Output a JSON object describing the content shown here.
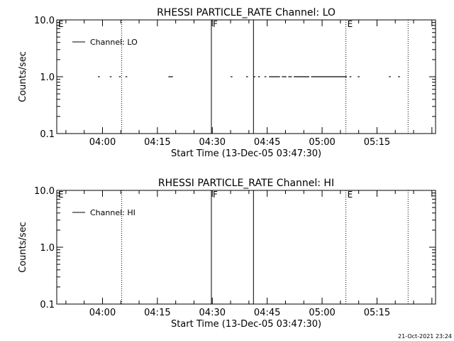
{
  "chart_data": [
    {
      "type": "scatter",
      "title": "RHESSI PARTICLE_RATE Channel: LO",
      "xlabel": "Start Time (13-Dec-05 03:47:30)",
      "ylabel": "Counts/sec",
      "y_scale": "log",
      "ylim": [
        0.1,
        10.0
      ],
      "xlim": [
        "03:47:30",
        "05:31:00"
      ],
      "x_ticks": [
        "04:00",
        "04:15",
        "04:30",
        "04:45",
        "05:00",
        "05:15"
      ],
      "y_ticks": [
        "0.1",
        "1.0",
        "10.0"
      ],
      "legend": {
        "label": "Channel: LO",
        "placement": "top-left"
      },
      "series": [
        {
          "name": "Channel: LO",
          "segments": [
            {
              "start": "03:58:45",
              "end": "03:59:15",
              "value": 1.0
            },
            {
              "start": "04:02:00",
              "end": "04:02:30",
              "value": 1.0
            },
            {
              "start": "04:04:30",
              "end": "04:05:00",
              "value": 1.0
            },
            {
              "start": "04:06:15",
              "end": "04:06:45",
              "value": 1.0
            },
            {
              "start": "04:18:00",
              "end": "04:19:15",
              "value": 1.0
            },
            {
              "start": "04:35:00",
              "end": "04:35:30",
              "value": 1.0
            },
            {
              "start": "04:39:15",
              "end": "04:39:45",
              "value": 1.0
            },
            {
              "start": "04:41:15",
              "end": "04:41:45",
              "value": 1.0
            },
            {
              "start": "04:42:30",
              "end": "04:43:00",
              "value": 1.0
            },
            {
              "start": "04:44:15",
              "end": "04:44:45",
              "value": 1.0
            },
            {
              "start": "04:45:30",
              "end": "04:48:30",
              "value": 1.0
            },
            {
              "start": "04:49:00",
              "end": "04:50:15",
              "value": 1.0
            },
            {
              "start": "04:50:45",
              "end": "04:51:45",
              "value": 1.0
            },
            {
              "start": "04:52:15",
              "end": "04:56:30",
              "value": 1.0
            },
            {
              "start": "04:57:00",
              "end": "05:06:45",
              "value": 1.0
            },
            {
              "start": "05:07:30",
              "end": "05:08:00",
              "value": 1.0
            },
            {
              "start": "05:09:45",
              "end": "05:10:15",
              "value": 1.0
            },
            {
              "start": "05:18:15",
              "end": "05:18:45",
              "value": 1.0
            },
            {
              "start": "05:20:45",
              "end": "05:21:15",
              "value": 1.0
            }
          ]
        }
      ],
      "markers": [
        {
          "label": "E",
          "time": "03:47:30",
          "style": "none"
        },
        {
          "label": "",
          "time": "04:05:15",
          "style": "dotted"
        },
        {
          "label": "F",
          "time": "04:29:45",
          "style": "solid"
        },
        {
          "label": "",
          "time": "04:41:15",
          "style": "solid"
        },
        {
          "label": "E",
          "time": "05:06:30",
          "style": "dotted"
        },
        {
          "label": "",
          "time": "05:23:30",
          "style": "dotted"
        }
      ]
    },
    {
      "type": "scatter",
      "title": "RHESSI PARTICLE_RATE Channel: HI",
      "xlabel": "Start Time (13-Dec-05 03:47:30)",
      "ylabel": "Counts/sec",
      "y_scale": "log",
      "ylim": [
        0.1,
        10.0
      ],
      "xlim": [
        "03:47:30",
        "05:31:00"
      ],
      "x_ticks": [
        "04:00",
        "04:15",
        "04:30",
        "04:45",
        "05:00",
        "05:15"
      ],
      "y_ticks": [
        "0.1",
        "1.0",
        "10.0"
      ],
      "legend": {
        "label": "Channel: HI",
        "placement": "top-left"
      },
      "series": [
        {
          "name": "Channel: HI",
          "segments": []
        }
      ],
      "markers": [
        {
          "label": "E",
          "time": "03:47:30",
          "style": "none"
        },
        {
          "label": "",
          "time": "04:05:15",
          "style": "dotted"
        },
        {
          "label": "F",
          "time": "04:29:45",
          "style": "solid"
        },
        {
          "label": "",
          "time": "04:41:15",
          "style": "solid"
        },
        {
          "label": "E",
          "time": "05:06:30",
          "style": "dotted"
        },
        {
          "label": "",
          "time": "05:23:30",
          "style": "dotted"
        }
      ]
    }
  ],
  "footer": {
    "timestamp": "21-Oct-2021 23:24"
  }
}
